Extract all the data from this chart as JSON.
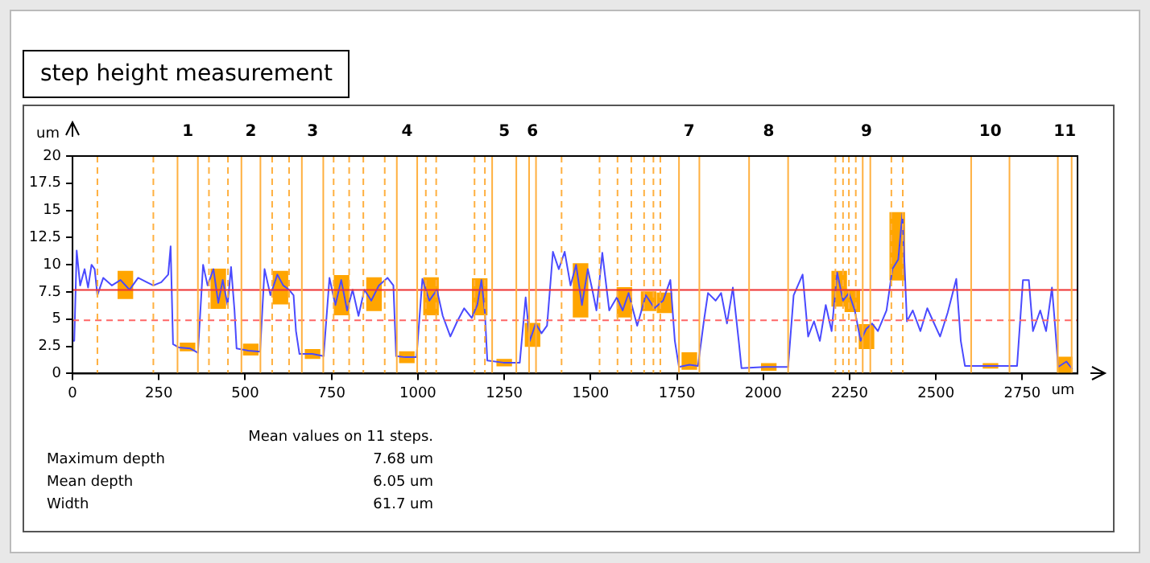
{
  "chart_data": {
    "type": "line",
    "title": "step height measurement",
    "xlabel": "um",
    "ylabel": "um",
    "xlim": [
      0,
      2910
    ],
    "xticks": [
      0,
      250,
      500,
      750,
      1000,
      1250,
      1500,
      1750,
      2000,
      2250,
      2500,
      2750
    ],
    "ylim": [
      0,
      20
    ],
    "yticks": [
      0,
      2.5,
      5,
      7.5,
      10,
      12.5,
      15,
      17.5,
      20
    ],
    "grid": false,
    "legend": false,
    "marker": "none",
    "line_style": "solid",
    "series": [
      {
        "color": "#4a4aff",
        "x": [
          0,
          5,
          12,
          22,
          35,
          45,
          55,
          64,
          72,
          89,
          114,
          139,
          165,
          190,
          215,
          234,
          257,
          277,
          284,
          291,
          307,
          341,
          363,
          378,
          391,
          408,
          422,
          435,
          449,
          459,
          469,
          475,
          509,
          543,
          556,
          573,
          593,
          610,
          627,
          640,
          647,
          657,
          694,
          727,
          744,
          761,
          778,
          795,
          811,
          828,
          845,
          865,
          887,
          912,
          929,
          937,
          963,
          996,
          1013,
          1033,
          1055,
          1072,
          1094,
          1114,
          1134,
          1156,
          1172,
          1184,
          1194,
          1201,
          1248,
          1295,
          1312,
          1324,
          1341,
          1358,
          1374,
          1391,
          1408,
          1425,
          1442,
          1458,
          1475,
          1492,
          1505,
          1517,
          1534,
          1554,
          1576,
          1593,
          1610,
          1635,
          1660,
          1685,
          1710,
          1731,
          1744,
          1756,
          1786,
          1811,
          1828,
          1840,
          1862,
          1878,
          1895,
          1912,
          1929,
          1937,
          2004,
          2072,
          2088,
          2114,
          2130,
          2147,
          2164,
          2181,
          2198,
          2214,
          2231,
          2248,
          2265,
          2282,
          2298,
          2315,
          2332,
          2357,
          2374,
          2391,
          2403,
          2416,
          2433,
          2455,
          2475,
          2492,
          2512,
          2534,
          2559,
          2572,
          2584,
          2660,
          2735,
          2752,
          2769,
          2781,
          2802,
          2819,
          2836,
          2844,
          2854,
          2878,
          2895
        ],
        "values": [
          3.0,
          3.0,
          11.3,
          8.1,
          9.6,
          7.9,
          10.0,
          9.6,
          7.2,
          8.8,
          8.1,
          8.6,
          7.7,
          8.8,
          8.4,
          8.1,
          8.4,
          9.1,
          11.7,
          2.7,
          2.4,
          2.3,
          1.9,
          10.0,
          8.1,
          9.6,
          6.5,
          8.6,
          6.3,
          9.8,
          5.8,
          2.3,
          2.1,
          2.0,
          9.6,
          7.2,
          9.1,
          8.1,
          7.7,
          7.2,
          3.9,
          1.8,
          1.8,
          1.6,
          8.8,
          6.3,
          8.6,
          5.8,
          7.7,
          5.3,
          7.7,
          6.7,
          8.1,
          8.8,
          8.1,
          1.6,
          1.5,
          1.5,
          8.7,
          6.7,
          7.7,
          5.3,
          3.4,
          4.8,
          6.0,
          5.1,
          6.3,
          8.6,
          5.6,
          1.2,
          1.0,
          1.0,
          7.0,
          3.0,
          4.6,
          3.7,
          4.4,
          11.2,
          9.6,
          11.2,
          8.1,
          10.0,
          6.3,
          9.6,
          7.7,
          5.8,
          11.1,
          5.8,
          7.0,
          5.8,
          7.4,
          4.4,
          7.2,
          6.0,
          6.7,
          8.6,
          3.0,
          0.6,
          0.8,
          0.7,
          4.8,
          7.4,
          6.7,
          7.4,
          4.6,
          7.9,
          3.0,
          0.5,
          0.6,
          0.6,
          7.2,
          9.1,
          3.4,
          4.8,
          3.0,
          6.3,
          3.9,
          9.3,
          6.7,
          7.4,
          5.8,
          3.0,
          4.1,
          4.6,
          3.9,
          5.8,
          9.6,
          10.5,
          14.7,
          4.8,
          5.8,
          3.9,
          6.0,
          4.8,
          3.4,
          5.6,
          8.7,
          3.0,
          0.7,
          0.7,
          0.7,
          8.6,
          8.6,
          3.9,
          5.8,
          3.9,
          7.9,
          4.8,
          0.6,
          1.1,
          0.4
        ]
      },
      {
        "type": "bar",
        "color": "#ffa500",
        "x": [
          153,
          333,
          422,
          516,
          602,
          695,
          779,
          873,
          968,
          1038,
          1179,
          1250,
          1332,
          1471,
          1598,
          1668,
          1714,
          1786,
          2016,
          2220,
          2258,
          2299,
          2388,
          2658,
          2873
        ],
        "base": [
          6.9,
          2.1,
          6.0,
          1.7,
          6.4,
          1.4,
          5.4,
          5.8,
          1.0,
          5.4,
          5.4,
          0.7,
          2.5,
          5.2,
          5.2,
          5.8,
          5.6,
          0.4,
          0.3,
          6.2,
          5.7,
          2.3,
          8.6,
          0.5,
          0.1
        ],
        "values": [
          2.5,
          0.7,
          3.6,
          1.0,
          3.0,
          0.8,
          3.6,
          3.0,
          1.0,
          3.4,
          3.3,
          0.6,
          2.1,
          4.9,
          2.7,
          1.7,
          1.8,
          1.5,
          0.6,
          3.2,
          2.0,
          2.2,
          6.2,
          0.4,
          1.4
        ]
      }
    ],
    "ref_lines": [
      {
        "axis": "y",
        "value": 7.68,
        "color": "#ee3333",
        "line_style": "solid"
      },
      {
        "axis": "y",
        "value": 4.9,
        "color": "#ff6666",
        "line_style": "dashed"
      },
      {
        "axis": "x",
        "value": 304,
        "color": "#ffb040",
        "line_style": "solid"
      },
      {
        "axis": "x",
        "value": 363,
        "color": "#ffb040",
        "line_style": "solid"
      },
      {
        "axis": "x",
        "value": 489,
        "color": "#ffb040",
        "line_style": "solid"
      },
      {
        "axis": "x",
        "value": 544,
        "color": "#ffb040",
        "line_style": "solid"
      },
      {
        "axis": "x",
        "value": 664,
        "color": "#ffb040",
        "line_style": "solid"
      },
      {
        "axis": "x",
        "value": 726,
        "color": "#ffb040",
        "line_style": "solid"
      },
      {
        "axis": "x",
        "value": 939,
        "color": "#ffb040",
        "line_style": "solid"
      },
      {
        "axis": "x",
        "value": 998,
        "color": "#ffb040",
        "line_style": "solid"
      },
      {
        "axis": "x",
        "value": 1215,
        "color": "#ffb040",
        "line_style": "solid"
      },
      {
        "axis": "x",
        "value": 1285,
        "color": "#ffb040",
        "line_style": "solid"
      },
      {
        "axis": "x",
        "value": 1322,
        "color": "#ffb040",
        "line_style": "solid"
      },
      {
        "axis": "x",
        "value": 1342,
        "color": "#ffb040",
        "line_style": "solid"
      },
      {
        "axis": "x",
        "value": 1756,
        "color": "#ffb040",
        "line_style": "solid"
      },
      {
        "axis": "x",
        "value": 1815,
        "color": "#ffb040",
        "line_style": "solid"
      },
      {
        "axis": "x",
        "value": 1959,
        "color": "#ffb040",
        "line_style": "solid"
      },
      {
        "axis": "x",
        "value": 2072,
        "color": "#ffb040",
        "line_style": "solid"
      },
      {
        "axis": "x",
        "value": 2288,
        "color": "#ffb040",
        "line_style": "solid"
      },
      {
        "axis": "x",
        "value": 2310,
        "color": "#ffb040",
        "line_style": "solid"
      },
      {
        "axis": "x",
        "value": 2602,
        "color": "#ffb040",
        "line_style": "solid"
      },
      {
        "axis": "x",
        "value": 2713,
        "color": "#ffb040",
        "line_style": "solid"
      },
      {
        "axis": "x",
        "value": 2853,
        "color": "#ffb040",
        "line_style": "solid"
      },
      {
        "axis": "x",
        "value": 2893,
        "color": "#ffb040",
        "line_style": "solid"
      },
      {
        "axis": "x",
        "value": 72,
        "color": "#ffb040",
        "line_style": "dashed"
      },
      {
        "axis": "x",
        "value": 234,
        "color": "#ffb040",
        "line_style": "dashed"
      },
      {
        "axis": "x",
        "value": 395,
        "color": "#ffb040",
        "line_style": "dashed"
      },
      {
        "axis": "x",
        "value": 450,
        "color": "#ffb040",
        "line_style": "dashed"
      },
      {
        "axis": "x",
        "value": 578,
        "color": "#ffb040",
        "line_style": "dashed"
      },
      {
        "axis": "x",
        "value": 627,
        "color": "#ffb040",
        "line_style": "dashed"
      },
      {
        "axis": "x",
        "value": 756,
        "color": "#ffb040",
        "line_style": "dashed"
      },
      {
        "axis": "x",
        "value": 801,
        "color": "#ffb040",
        "line_style": "dashed"
      },
      {
        "axis": "x",
        "value": 842,
        "color": "#ffb040",
        "line_style": "dashed"
      },
      {
        "axis": "x",
        "value": 904,
        "color": "#ffb040",
        "line_style": "dashed"
      },
      {
        "axis": "x",
        "value": 1023,
        "color": "#ffb040",
        "line_style": "dashed"
      },
      {
        "axis": "x",
        "value": 1053,
        "color": "#ffb040",
        "line_style": "dashed"
      },
      {
        "axis": "x",
        "value": 1164,
        "color": "#ffb040",
        "line_style": "dashed"
      },
      {
        "axis": "x",
        "value": 1194,
        "color": "#ffb040",
        "line_style": "dashed"
      },
      {
        "axis": "x",
        "value": 1416,
        "color": "#ffb040",
        "line_style": "dashed"
      },
      {
        "axis": "x",
        "value": 1526,
        "color": "#ffb040",
        "line_style": "dashed"
      },
      {
        "axis": "x",
        "value": 1578,
        "color": "#ffb040",
        "line_style": "dashed"
      },
      {
        "axis": "x",
        "value": 1618,
        "color": "#ffb040",
        "line_style": "dashed"
      },
      {
        "axis": "x",
        "value": 1655,
        "color": "#ffb040",
        "line_style": "dashed"
      },
      {
        "axis": "x",
        "value": 1682,
        "color": "#ffb040",
        "line_style": "dashed"
      },
      {
        "axis": "x",
        "value": 1702,
        "color": "#ffb040",
        "line_style": "dashed"
      },
      {
        "axis": "x",
        "value": 2209,
        "color": "#ffb040",
        "line_style": "dashed"
      },
      {
        "axis": "x",
        "value": 2231,
        "color": "#ffb040",
        "line_style": "dashed"
      },
      {
        "axis": "x",
        "value": 2248,
        "color": "#ffb040",
        "line_style": "dashed"
      },
      {
        "axis": "x",
        "value": 2268,
        "color": "#ffb040",
        "line_style": "dashed"
      },
      {
        "axis": "x",
        "value": 2371,
        "color": "#ffb040",
        "line_style": "dashed"
      },
      {
        "axis": "x",
        "value": 2404,
        "color": "#ffb040",
        "line_style": "dashed"
      }
    ],
    "annotations": [
      "1",
      "2",
      "3",
      "4",
      "5",
      "6",
      "7",
      "8",
      "9",
      "10",
      "11",
      "Mean values on 11 steps.",
      "Maximum depth",
      "7.68 um",
      "Mean depth",
      "6.05 um",
      "Width",
      "61.7 um"
    ]
  }
}
